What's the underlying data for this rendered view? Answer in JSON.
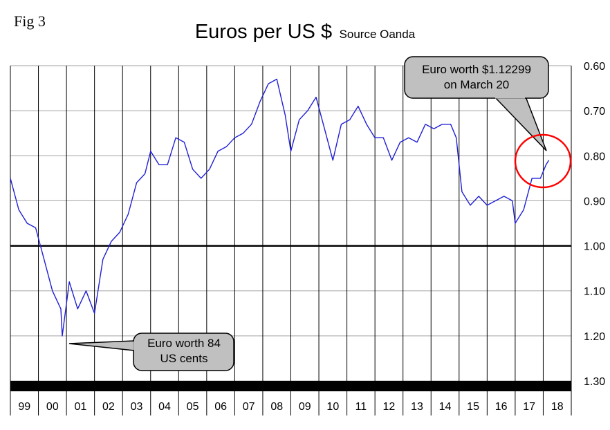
{
  "figure": {
    "label": "Fig 3",
    "title": "Euros per US $",
    "subtitle": "Source Oanda"
  },
  "chart_data": {
    "type": "line",
    "ylim": [
      0.6,
      1.3
    ],
    "y_inverted": true,
    "y_ticks": [
      "0.60",
      "0.70",
      "0.80",
      "0.90",
      "1.00",
      "1.10",
      "1.20",
      "1.30"
    ],
    "y_tick_values": [
      0.6,
      0.7,
      0.8,
      0.9,
      1.0,
      1.1,
      1.2,
      1.3
    ],
    "x_ticks": [
      "99",
      "00",
      "01",
      "02",
      "03",
      "04",
      "05",
      "06",
      "07",
      "08",
      "09",
      "10",
      "11",
      "12",
      "13",
      "14",
      "15",
      "16",
      "17",
      "18"
    ],
    "reference_line": 1.0,
    "line_color": "#1f1fd6",
    "series": [
      {
        "x": [
          1999.0,
          1999.3,
          1999.6,
          1999.9,
          2000.2,
          2000.5,
          2000.8,
          2000.85,
          2001.1,
          2001.4,
          2001.7,
          2002.0,
          2002.3,
          2002.6,
          2002.9,
          2003.2,
          2003.5,
          2003.8,
          2004.0,
          2004.3,
          2004.6,
          2004.9,
          2005.2,
          2005.5,
          2005.8,
          2006.1,
          2006.4,
          2006.7,
          2007.0,
          2007.3,
          2007.6,
          2007.9,
          2008.2,
          2008.5,
          2008.8,
          2009.0,
          2009.3,
          2009.6,
          2009.9,
          2010.2,
          2010.5,
          2010.8,
          2011.1,
          2011.4,
          2011.7,
          2012.0,
          2012.3,
          2012.6,
          2012.9,
          2013.2,
          2013.5,
          2013.8,
          2014.1,
          2014.4,
          2014.7,
          2014.9,
          2015.1,
          2015.4,
          2015.7,
          2016.0,
          2016.3,
          2016.6,
          2016.9,
          2017.0,
          2017.3,
          2017.6,
          2017.9,
          2018.1,
          2018.2
        ],
        "values": [
          0.85,
          0.92,
          0.95,
          0.96,
          1.03,
          1.1,
          1.14,
          1.2,
          1.08,
          1.14,
          1.1,
          1.15,
          1.03,
          0.99,
          0.97,
          0.93,
          0.86,
          0.84,
          0.79,
          0.82,
          0.82,
          0.76,
          0.77,
          0.83,
          0.85,
          0.83,
          0.79,
          0.78,
          0.76,
          0.75,
          0.73,
          0.68,
          0.64,
          0.63,
          0.71,
          0.79,
          0.72,
          0.7,
          0.67,
          0.74,
          0.81,
          0.73,
          0.72,
          0.69,
          0.73,
          0.76,
          0.76,
          0.81,
          0.77,
          0.76,
          0.77,
          0.73,
          0.74,
          0.73,
          0.73,
          0.76,
          0.88,
          0.91,
          0.89,
          0.91,
          0.9,
          0.89,
          0.9,
          0.95,
          0.92,
          0.85,
          0.85,
          0.82,
          0.81
        ]
      }
    ],
    "annotations": [
      {
        "lines": [
          "Euro worth $1.12299",
          "on March 20"
        ]
      },
      {
        "lines": [
          "Euro worth 84",
          "US cents"
        ]
      }
    ],
    "circle_color": "#ff0000"
  }
}
